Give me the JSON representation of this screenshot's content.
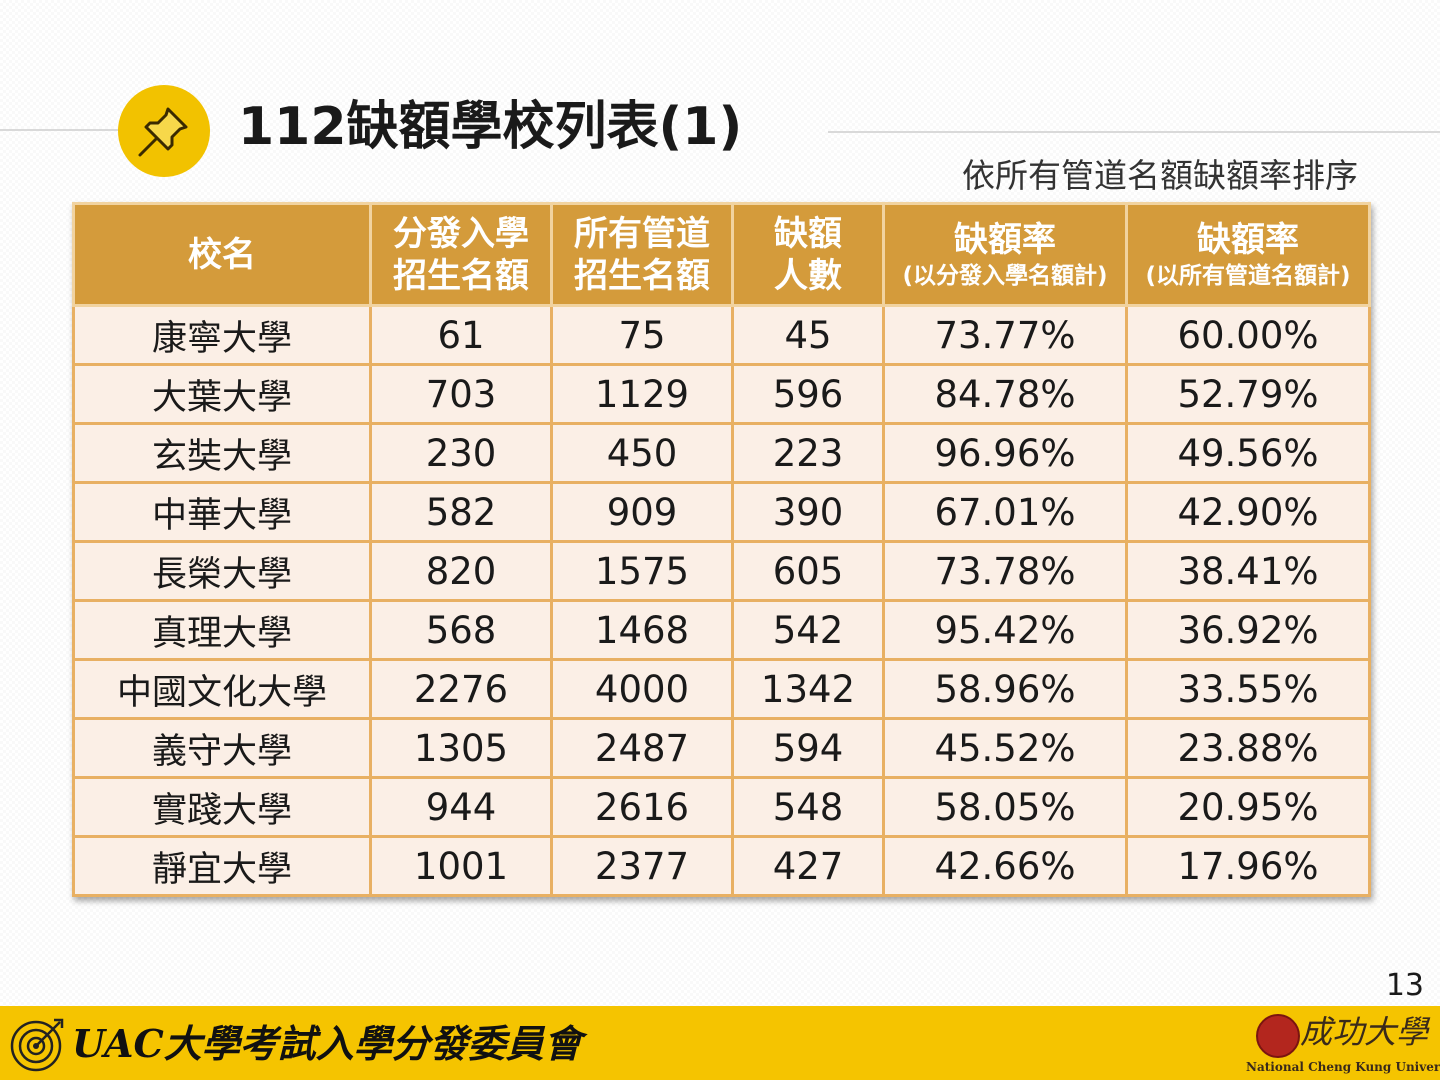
{
  "title": "112缺額學校列表(1)",
  "subtitle": "依所有管道名額缺額率排序",
  "icons": {
    "header": "pushpin-icon",
    "footer_logo": "target-logo-icon",
    "ncku_seal": "ncku-seal-icon"
  },
  "colors": {
    "header_bg": "#d49b3b",
    "row_bg": "#fbefe6",
    "border": "#e8b063",
    "accent_yellow": "#f5c400"
  },
  "table": {
    "headers": [
      {
        "lines": [
          "校名"
        ]
      },
      {
        "lines": [
          "分發入學",
          "招生名額"
        ]
      },
      {
        "lines": [
          "所有管道",
          "招生名額"
        ]
      },
      {
        "lines": [
          "缺額",
          "人數"
        ]
      },
      {
        "lines": [
          "缺額率"
        ],
        "note": "(以分發入學名額計)"
      },
      {
        "lines": [
          "缺額率"
        ],
        "note": "(以所有管道名額計)"
      }
    ],
    "rows": [
      [
        "康寧大學",
        "61",
        "75",
        "45",
        "73.77%",
        "60.00%"
      ],
      [
        "大葉大學",
        "703",
        "1129",
        "596",
        "84.78%",
        "52.79%"
      ],
      [
        "玄奘大學",
        "230",
        "450",
        "223",
        "96.96%",
        "49.56%"
      ],
      [
        "中華大學",
        "582",
        "909",
        "390",
        "67.01%",
        "42.90%"
      ],
      [
        "長榮大學",
        "820",
        "1575",
        "605",
        "73.78%",
        "38.41%"
      ],
      [
        "真理大學",
        "568",
        "1468",
        "542",
        "95.42%",
        "36.92%"
      ],
      [
        "中國文化大學",
        "2276",
        "4000",
        "1342",
        "58.96%",
        "33.55%"
      ],
      [
        "義守大學",
        "1305",
        "2487",
        "594",
        "45.52%",
        "23.88%"
      ],
      [
        "實踐大學",
        "944",
        "2616",
        "548",
        "58.05%",
        "20.95%"
      ],
      [
        "靜宜大學",
        "1001",
        "2377",
        "427",
        "42.66%",
        "17.96%"
      ]
    ]
  },
  "page_number": "13",
  "footer": {
    "org_text": "UAC大學考試入學分發委員會",
    "ncku_chinese": "成功大學",
    "ncku_english": "National Cheng Kung University"
  }
}
